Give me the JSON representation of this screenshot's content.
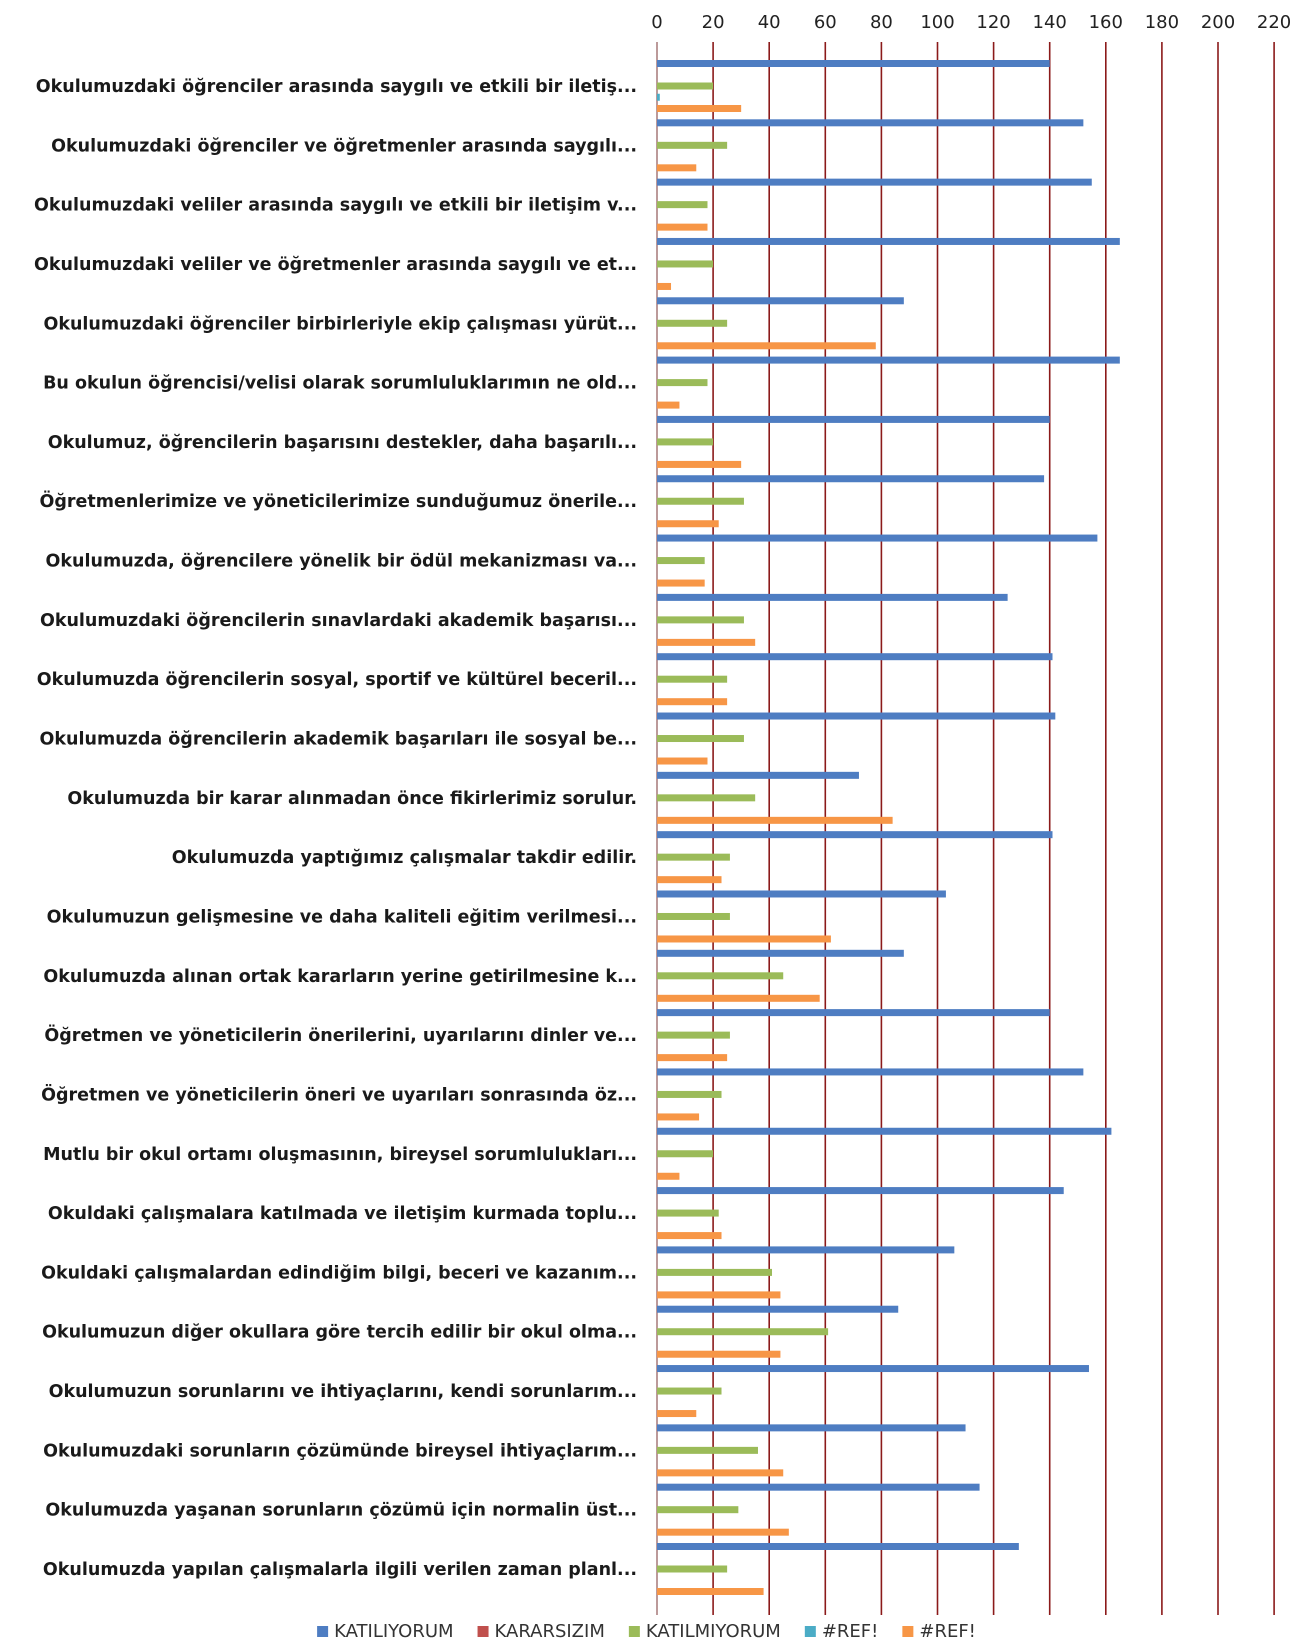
{
  "chart_data": {
    "type": "bar",
    "orientation": "horizontal",
    "title": "",
    "xlabel": "",
    "ylabel": "",
    "xlim": [
      0,
      220
    ],
    "x_ticks": [
      0,
      20,
      40,
      60,
      80,
      100,
      120,
      140,
      160,
      180,
      200,
      220
    ],
    "x_axis_position": "top",
    "grid": true,
    "legend_position": "bottom",
    "categories": [
      "Okulumuzdaki öğrenciler arasında saygılı ve etkili bir iletiş...",
      "Okulumuzdaki öğrenciler ve öğretmenler arasında saygılı...",
      "Okulumuzdaki veliler arasında saygılı ve etkili bir iletişim v...",
      "Okulumuzdaki veliler ve öğretmenler arasında saygılı ve et...",
      "Okulumuzdaki öğrenciler birbirleriyle ekip çalışması yürüt...",
      "Bu okulun öğrencisi/velisi olarak sorumluluklarımın ne old...",
      "Okulumuz, öğrencilerin başarısını destekler, daha başarılı...",
      "Öğretmenlerimize ve yöneticilerimize sunduğumuz önerile...",
      "Okulumuzda, öğrencilere yönelik bir ödül mekanizması va...",
      "Okulumuzdaki öğrencilerin sınavlardaki akademik başarısı...",
      "Okulumuzda öğrencilerin sosyal, sportif ve kültürel beceril...",
      "Okulumuzda öğrencilerin akademik başarıları ile sosyal be...",
      "Okulumuzda bir karar alınmadan önce fikirlerimiz sorulur.",
      "Okulumuzda yaptığımız çalışmalar takdir edilir.",
      "Okulumuzun gelişmesine ve daha kaliteli eğitim verilmesi...",
      "Okulumuzda alınan ortak kararların yerine getirilmesine k...",
      "Öğretmen ve yöneticilerin önerilerini, uyarılarını dinler ve...",
      "Öğretmen ve yöneticilerin öneri ve uyarıları sonrasında öz...",
      "Mutlu bir okul ortamı oluşmasının, bireysel sorumlulukları...",
      "Okuldaki çalışmalara katılmada ve iletişim kurmada toplu...",
      "Okuldaki çalışmalardan edindiğim bilgi, beceri ve kazanım...",
      "Okulumuzun diğer okullara göre tercih edilir bir okul olma...",
      "Okulumuzun sorunlarını ve ihtiyaçlarını, kendi sorunlarım...",
      "Okulumuzdaki sorunların çözümünde bireysel ihtiyaçlarım...",
      "Okulumuzda yaşanan sorunların çözümü için normalin üst...",
      "Okulumuzda yapılan çalışmalarla ilgili verilen zaman planl..."
    ],
    "series": [
      {
        "name": "KATILIYORUM",
        "color": "#4e7dc2",
        "values": [
          140,
          152,
          155,
          165,
          88,
          165,
          140,
          138,
          157,
          125,
          141,
          142,
          72,
          141,
          103,
          88,
          140,
          152,
          162,
          145,
          106,
          86,
          154,
          110,
          115,
          129
        ]
      },
      {
        "name": "KARARSIZIM",
        "color": "#c0504d",
        "values": [
          0,
          0,
          0,
          0,
          0,
          0,
          0,
          0,
          0,
          0,
          0,
          0,
          0,
          0,
          0,
          0,
          0,
          0,
          0,
          0,
          0,
          0,
          0,
          0,
          0,
          0
        ]
      },
      {
        "name": "KATILMIYORUM",
        "color": "#9bbb59",
        "values": [
          20,
          25,
          18,
          20,
          25,
          18,
          20,
          31,
          17,
          31,
          25,
          31,
          35,
          26,
          26,
          45,
          26,
          23,
          20,
          22,
          41,
          61,
          23,
          36,
          29,
          25
        ]
      },
      {
        "name": "#REF!",
        "color": "#4bacc6",
        "values": [
          1,
          0,
          0,
          0,
          0,
          0,
          0,
          0,
          0,
          0,
          0,
          0,
          0,
          0,
          0,
          0,
          0,
          0,
          0,
          0,
          0,
          0,
          0,
          0,
          0,
          0
        ]
      },
      {
        "name": "#REF!",
        "color": "#f79646",
        "values": [
          30,
          14,
          18,
          5,
          78,
          8,
          30,
          22,
          17,
          35,
          25,
          18,
          84,
          23,
          62,
          58,
          25,
          15,
          8,
          23,
          44,
          44,
          14,
          45,
          47,
          38
        ]
      }
    ],
    "gridline_color": "#8b1a1a"
  }
}
